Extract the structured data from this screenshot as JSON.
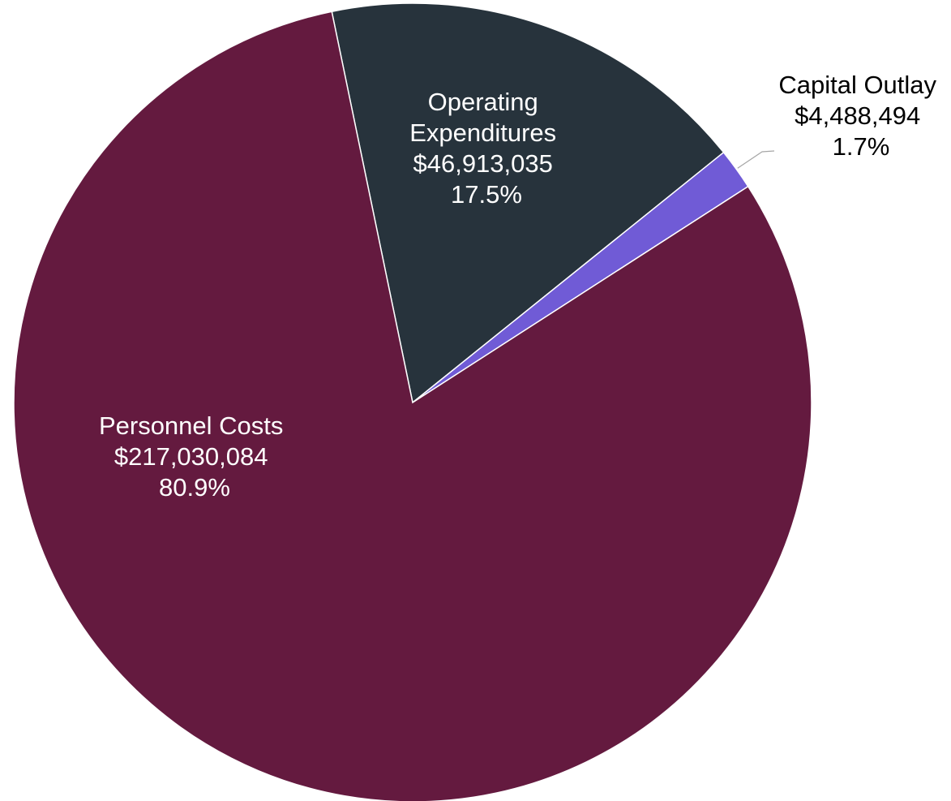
{
  "chart_data": {
    "type": "pie",
    "title": "",
    "legend": "none",
    "slices": [
      {
        "name": "Personnel Costs",
        "value": 217030084,
        "amount_label": "$217,030,084",
        "percent_label": "80.9%",
        "color": "#641a3f",
        "text_color": "#ffffff"
      },
      {
        "name": "Operating Expenditures",
        "value": 46913035,
        "amount_label": "$46,913,035",
        "percent_label": "17.5%",
        "color": "#27333c",
        "text_color": "#ffffff"
      },
      {
        "name": "Capital Outlay",
        "value": 4488494,
        "amount_label": "$4,488,494",
        "percent_label": "1.7%",
        "color": "#705bd6",
        "text_color": "#000000"
      }
    ]
  }
}
